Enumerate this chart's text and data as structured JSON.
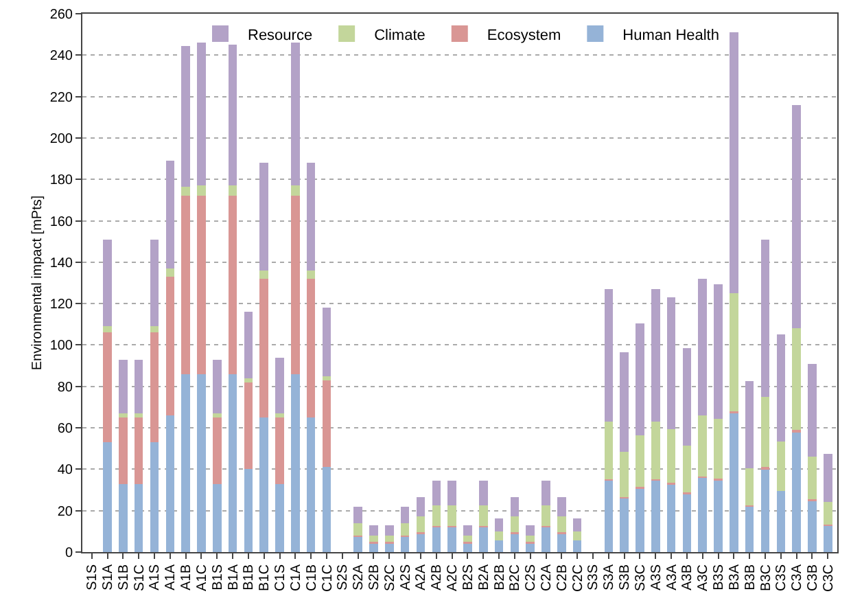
{
  "chart_data": {
    "type": "bar",
    "stacked": true,
    "ylabel": "Environmental impact [mPts]",
    "categories": [
      "S1S",
      "S1A",
      "S1B",
      "S1C",
      "A1S",
      "A1A",
      "A1B",
      "A1C",
      "B1S",
      "B1A",
      "B1B",
      "B1C",
      "C1S",
      "C1A",
      "C1B",
      "C1C",
      "S2S",
      "S2A",
      "S2B",
      "S2C",
      "A2S",
      "A2A",
      "A2B",
      "A2C",
      "B2S",
      "B2A",
      "B2B",
      "B2C",
      "C2S",
      "C2A",
      "C2B",
      "C2C",
      "S3S",
      "S3A",
      "S3B",
      "S3C",
      "A3S",
      "A3A",
      "A3B",
      "A3C",
      "B3S",
      "B3A",
      "B3B",
      "B3C",
      "C3S",
      "C3A",
      "C3B",
      "C3C"
    ],
    "series": [
      {
        "name": "Human Health",
        "color": "#95b3d7",
        "values": [
          0,
          53,
          33,
          33,
          53,
          66,
          86,
          86,
          33,
          86,
          40,
          65,
          33,
          86,
          65,
          41,
          0,
          7.3,
          4.6,
          4.6,
          7.3,
          9.2,
          12,
          12,
          4.6,
          12,
          5.7,
          9.2,
          4.6,
          12,
          9.2,
          5.7,
          0,
          34.5,
          26,
          31,
          34.5,
          33,
          28.5,
          36,
          35,
          67,
          22,
          40,
          29.5,
          58,
          25,
          13
        ]
      },
      {
        "name": "Ecosystem",
        "color": "#d99694",
        "values": [
          0,
          53,
          32,
          32,
          53,
          67,
          86,
          86,
          32,
          86,
          42,
          67,
          32,
          86,
          67,
          42,
          0,
          0.5,
          0.3,
          0.3,
          0.5,
          0.5,
          0.5,
          0.5,
          0.3,
          0.5,
          null,
          0.5,
          0.3,
          0.5,
          0.5,
          null,
          0,
          0.5,
          0.5,
          0.5,
          0.5,
          0.5,
          0.5,
          0.5,
          0.5,
          1,
          0.5,
          1,
          null,
          1,
          0.5,
          0.3
        ]
      },
      {
        "name": "Climate",
        "color": "#c3d69b",
        "values": [
          0,
          3,
          2,
          2,
          3,
          4,
          4.5,
          5,
          2,
          5,
          2,
          4,
          2,
          5,
          4,
          2,
          0,
          6,
          3,
          3,
          6,
          7.5,
          10,
          10,
          3,
          10,
          4.3,
          7.5,
          3,
          10,
          7.5,
          4.3,
          0,
          28,
          22,
          25,
          28,
          26,
          22.5,
          29.5,
          29,
          57,
          18,
          34,
          24,
          49,
          20.5,
          11
        ]
      },
      {
        "name": "Resource",
        "color": "#b3a2c7",
        "values": [
          0,
          42,
          26,
          26,
          42,
          52,
          68,
          69,
          26,
          68,
          32,
          52,
          27,
          69,
          52,
          33,
          0,
          8,
          5,
          5,
          8,
          9.4,
          12,
          12,
          5,
          12,
          6.2,
          9.4,
          5,
          12,
          9.4,
          6.2,
          0,
          64,
          48,
          54,
          64,
          63.5,
          47,
          66,
          65,
          126,
          42,
          76,
          51.5,
          108,
          45,
          23
        ]
      }
    ],
    "ylim": [
      0,
      260
    ],
    "yticks": [
      0,
      20,
      40,
      60,
      80,
      100,
      120,
      140,
      160,
      180,
      200,
      220,
      240,
      260
    ],
    "grid": "y",
    "legend": "top"
  }
}
